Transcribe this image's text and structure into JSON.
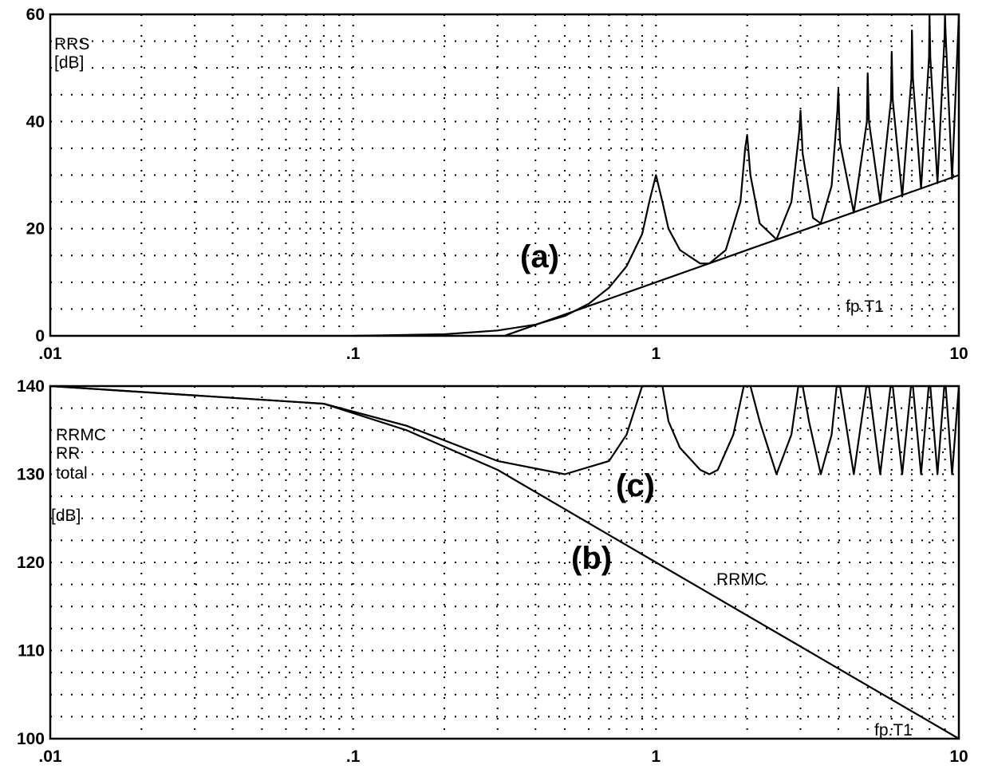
{
  "chart_data": [
    {
      "type": "line",
      "x_scale": "log",
      "xlim": [
        0.01,
        10
      ],
      "ylim": [
        0,
        60
      ],
      "x_ticks": [
        0.01,
        0.1,
        1,
        10
      ],
      "x_tick_labels": [
        ".01",
        ".1",
        "1",
        "10"
      ],
      "y_ticks": [
        0,
        20,
        40,
        60
      ],
      "y_tick_labels": [
        "0",
        "20",
        "40",
        "60"
      ],
      "grid": true,
      "ylabel_lines": [
        "RRS",
        "[dB]"
      ],
      "xlabel": "fp.T1",
      "annotations": [
        {
          "text": "(a)"
        }
      ],
      "series": [
        {
          "x": [
            0.1,
            0.2,
            0.3,
            0.4,
            0.5,
            0.6,
            0.7,
            0.8,
            0.9,
            0.95,
            1.0,
            1.05,
            1.1,
            1.2,
            1.4,
            1.5,
            1.7,
            1.9,
            1.97,
            2.0,
            2.05,
            2.2,
            2.5,
            2.8,
            2.97,
            3.0,
            3.05,
            3.3,
            3.5,
            3.8,
            3.97,
            4.0,
            4.05,
            4.5,
            4.97,
            5.0,
            5.05,
            5.5,
            5.97,
            6.0,
            6.05,
            6.5,
            6.97,
            7.0,
            7.05,
            7.5,
            7.97,
            8.0,
            8.05,
            8.5,
            8.97,
            9.0,
            9.05,
            9.5,
            10.0
          ],
          "values": [
            0,
            0.3,
            1.0,
            2.1,
            3.7,
            6.0,
            9.0,
            13.0,
            19.0,
            25.0,
            30.0,
            25.0,
            20.0,
            16.0,
            13.5,
            13.5,
            16.0,
            25.0,
            35.0,
            37.5,
            30.0,
            21.0,
            18.0,
            25.0,
            38.0,
            42.0,
            34.0,
            22.0,
            21.0,
            28.0,
            42.0,
            46.0,
            36.0,
            23.0,
            40.0,
            49.0,
            40.0,
            25.0,
            44.0,
            53.0,
            44.0,
            26.0,
            48.0,
            57.0,
            48.0,
            27.5,
            52.0,
            60.0,
            52.0,
            28.5,
            56.0,
            60.0,
            56.0,
            29.3,
            60.0
          ]
        },
        {
          "x": [
            0.316,
            1,
            10
          ],
          "values": [
            0,
            10,
            30
          ]
        }
      ]
    },
    {
      "type": "line",
      "x_scale": "log",
      "xlim": [
        0.01,
        10
      ],
      "ylim": [
        100,
        140
      ],
      "x_ticks": [
        0.01,
        0.1,
        1,
        10
      ],
      "x_tick_labels": [
        ".01",
        ".1",
        "1",
        "10"
      ],
      "y_ticks": [
        100,
        110,
        120,
        130,
        140
      ],
      "y_tick_labels": [
        "100",
        "110",
        "120",
        "130",
        "140"
      ],
      "grid": true,
      "ylabel_lines": [
        "RRMC",
        "RR",
        "total",
        "[dB]"
      ],
      "xlabel": "fp.T1",
      "curve_label": "RRMC",
      "annotations": [
        {
          "text": "(c)"
        },
        {
          "text": "(b)"
        }
      ],
      "series": [
        {
          "x": [
            0.01,
            0.08,
            0.15,
            0.3,
            0.5,
            0.7,
            0.8,
            0.9,
            0.95,
            1.0,
            1.05,
            1.1,
            1.2,
            1.4,
            1.5,
            1.6,
            1.8,
            1.95,
            2.0,
            2.05,
            2.2,
            2.5,
            2.8,
            2.95,
            3.0,
            3.05,
            3.2,
            3.5,
            3.8,
            3.95,
            4.0,
            4.05,
            4.5,
            4.95,
            5.0,
            5.05,
            5.5,
            5.95,
            6.0,
            6.05,
            6.5,
            6.95,
            7.0,
            7.05,
            7.5,
            7.95,
            8.0,
            8.05,
            8.5,
            8.95,
            9.0,
            9.05,
            9.5,
            10.0
          ],
          "values": [
            140,
            138,
            135.5,
            131.5,
            130,
            131.5,
            134.5,
            140,
            140,
            140,
            140,
            136,
            133,
            130.5,
            130,
            130.5,
            134.5,
            140,
            140,
            140,
            136,
            130,
            134.5,
            140,
            140,
            140,
            136,
            130,
            134.5,
            140,
            140,
            140,
            130,
            140,
            140,
            140,
            130,
            140,
            140,
            140,
            130,
            140,
            140,
            140,
            130,
            140,
            140,
            140,
            130,
            140,
            140,
            140,
            130,
            140
          ]
        },
        {
          "x": [
            0.01,
            0.08,
            0.15,
            0.3,
            1,
            10
          ],
          "values": [
            140,
            138,
            135,
            130.5,
            120,
            100
          ]
        }
      ]
    }
  ]
}
